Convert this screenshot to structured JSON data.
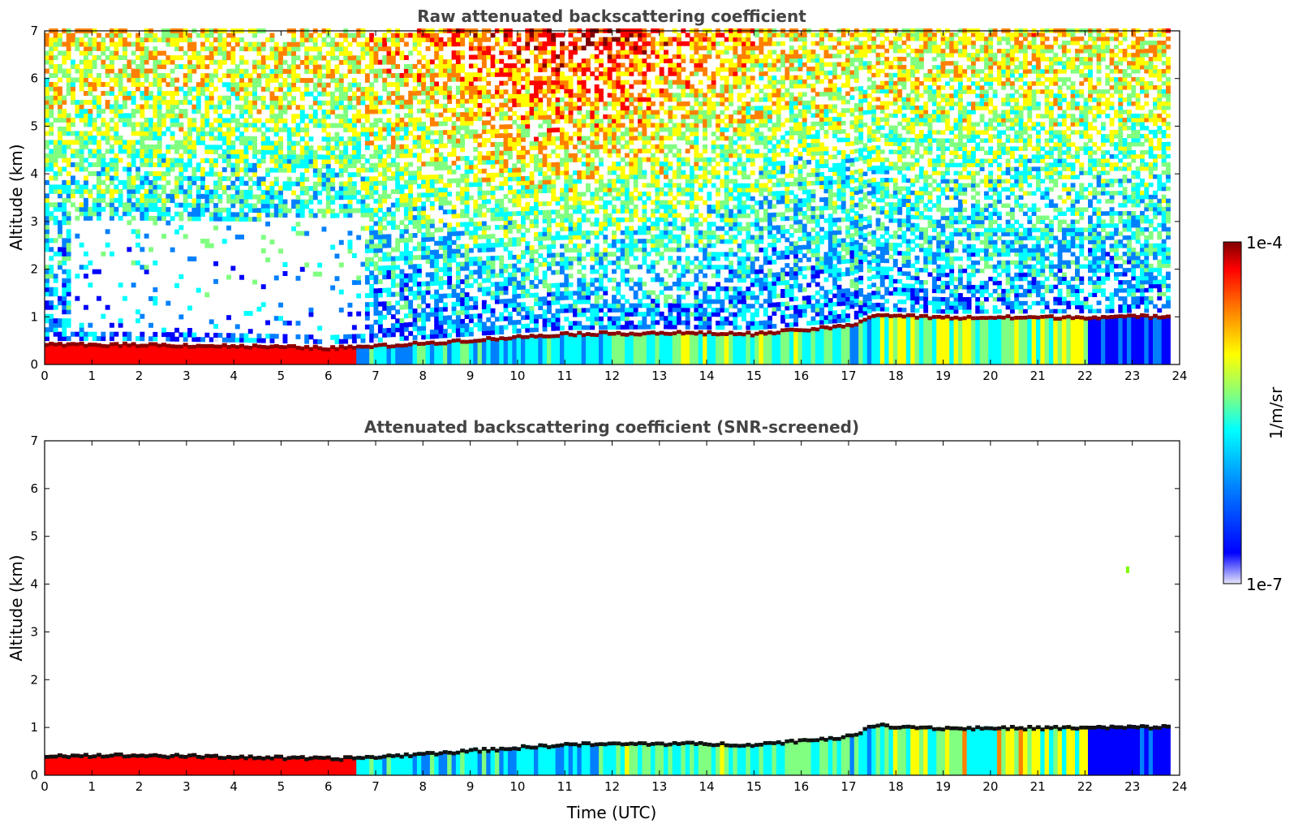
{
  "chart_data": [
    {
      "type": "heatmap",
      "title": "Raw attenuated backscattering coefficient",
      "xlabel": "",
      "ylabel": "Altitude (km)",
      "xlim": [
        0,
        24
      ],
      "ylim": [
        0,
        7
      ],
      "x_ticks": [
        "0",
        "1",
        "2",
        "3",
        "4",
        "5",
        "6",
        "7",
        "8",
        "9",
        "10",
        "11",
        "12",
        "13",
        "14",
        "15",
        "16",
        "17",
        "18",
        "19",
        "20",
        "21",
        "22",
        "23",
        "24"
      ],
      "y_ticks": [
        "0",
        "1",
        "2",
        "3",
        "4",
        "5",
        "6",
        "7"
      ],
      "data_end_hour": 23.8,
      "color_scale": "log",
      "layer_top_km": [
        {
          "t": 0,
          "top": 0.45
        },
        {
          "t": 2,
          "top": 0.45
        },
        {
          "t": 4,
          "top": 0.42
        },
        {
          "t": 6,
          "top": 0.38
        },
        {
          "t": 7,
          "top": 0.42
        },
        {
          "t": 9,
          "top": 0.55
        },
        {
          "t": 11,
          "top": 0.68
        },
        {
          "t": 13,
          "top": 0.7
        },
        {
          "t": 15,
          "top": 0.68
        },
        {
          "t": 17,
          "top": 0.85
        },
        {
          "t": 17.5,
          "top": 1.08
        },
        {
          "t": 19,
          "top": 1.02
        },
        {
          "t": 22,
          "top": 1.03
        },
        {
          "t": 23.8,
          "top": 1.05
        }
      ],
      "upper_signal": "noisy",
      "clear_zone": {
        "t_start": 0.5,
        "t_end": 6.7,
        "alt_min": 0.6,
        "alt_max": 3.0
      }
    },
    {
      "type": "heatmap",
      "title": "Attenuated backscattering coefficient (SNR-screened)",
      "xlabel": "Time (UTC)",
      "ylabel": "Altitude (km)",
      "xlim": [
        0,
        24
      ],
      "ylim": [
        0,
        7
      ],
      "x_ticks": [
        "0",
        "1",
        "2",
        "3",
        "4",
        "5",
        "6",
        "7",
        "8",
        "9",
        "10",
        "11",
        "12",
        "13",
        "14",
        "15",
        "16",
        "17",
        "18",
        "19",
        "20",
        "21",
        "22",
        "23",
        "24"
      ],
      "y_ticks": [
        "0",
        "1",
        "2",
        "3",
        "4",
        "5",
        "6",
        "7"
      ],
      "data_end_hour": 23.8,
      "color_scale": "log",
      "upper_signal": "screened",
      "isolated_feature": {
        "t": 22.9,
        "alt": 4.3
      }
    }
  ],
  "colorbar": {
    "label": "1/m/sr",
    "max_label": "1e-4",
    "min_label": "1e-7",
    "colormap": "jet",
    "stops": [
      "#e6e6fa",
      "#0000ff",
      "#0080ff",
      "#00ffff",
      "#80ff80",
      "#ffff00",
      "#ff8000",
      "#ff0000",
      "#800000"
    ]
  }
}
